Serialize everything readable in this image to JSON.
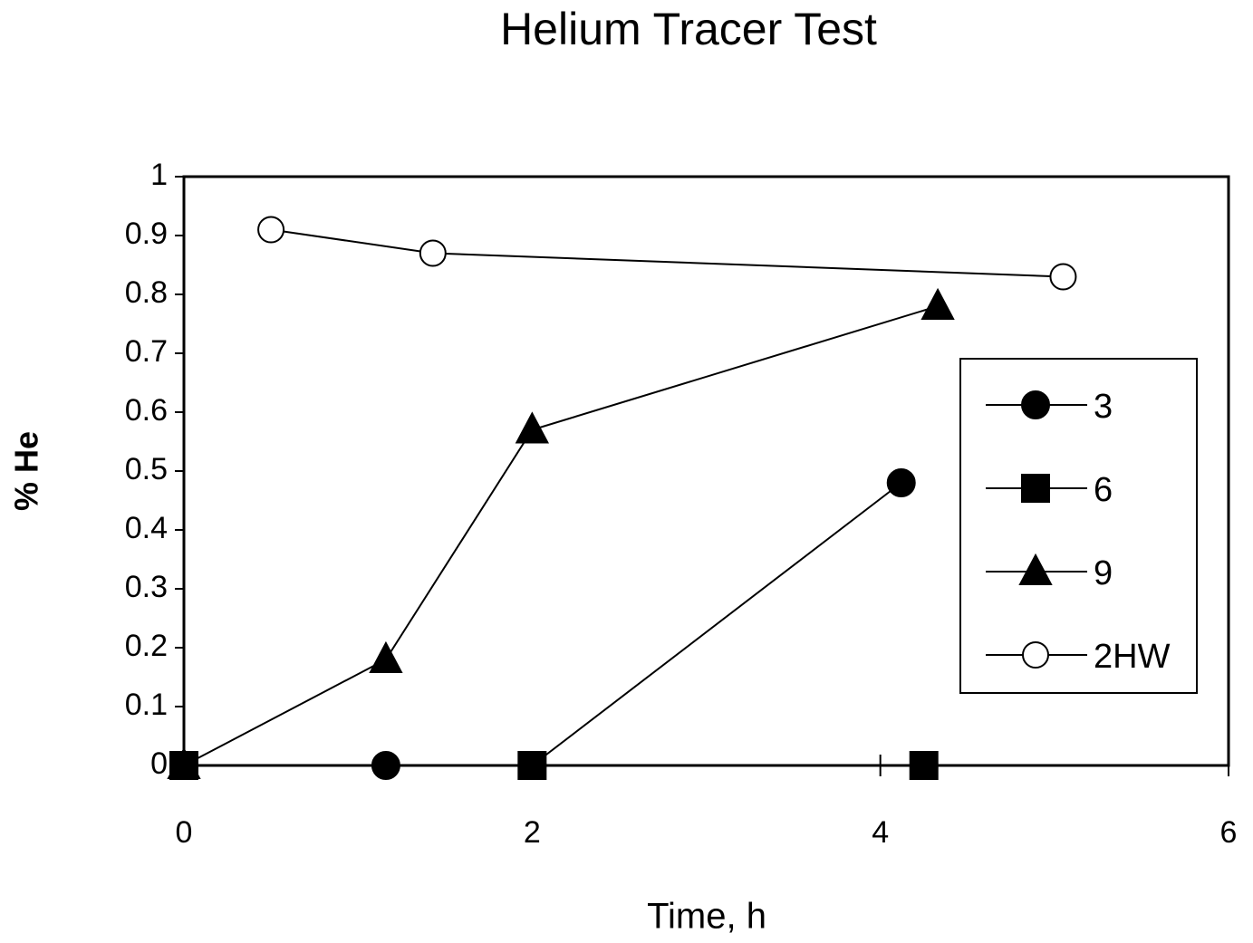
{
  "chart_data": {
    "type": "line",
    "title": "Helium Tracer Test",
    "xlabel": "Time, h",
    "ylabel": "% He",
    "xlim": [
      0,
      6
    ],
    "xticks": [
      0,
      2,
      4,
      6
    ],
    "ylim": [
      0,
      1
    ],
    "yticks": [
      0,
      0.1,
      0.2,
      0.3,
      0.4,
      0.5,
      0.6,
      0.7,
      0.8,
      0.9,
      1
    ],
    "legend": "right",
    "series": [
      {
        "name": "3",
        "color": "#000000",
        "marker": "circle",
        "x": [
          0,
          1.16,
          2.0,
          4.12
        ],
        "values": [
          0,
          0,
          0,
          0.48
        ]
      },
      {
        "name": "6",
        "color": "#000000",
        "marker": "square",
        "x": [
          0,
          2.0,
          4.25
        ],
        "values": [
          0,
          0,
          0
        ]
      },
      {
        "name": "9",
        "color": "#000000",
        "marker": "triangle",
        "x": [
          0,
          1.16,
          2.0,
          4.33
        ],
        "values": [
          0,
          0.18,
          0.57,
          0.78
        ]
      },
      {
        "name": "2HW",
        "color": "#000000",
        "marker": "open-circle",
        "x": [
          0.5,
          1.43,
          5.05
        ],
        "values": [
          0.91,
          0.87,
          0.83
        ]
      }
    ]
  }
}
